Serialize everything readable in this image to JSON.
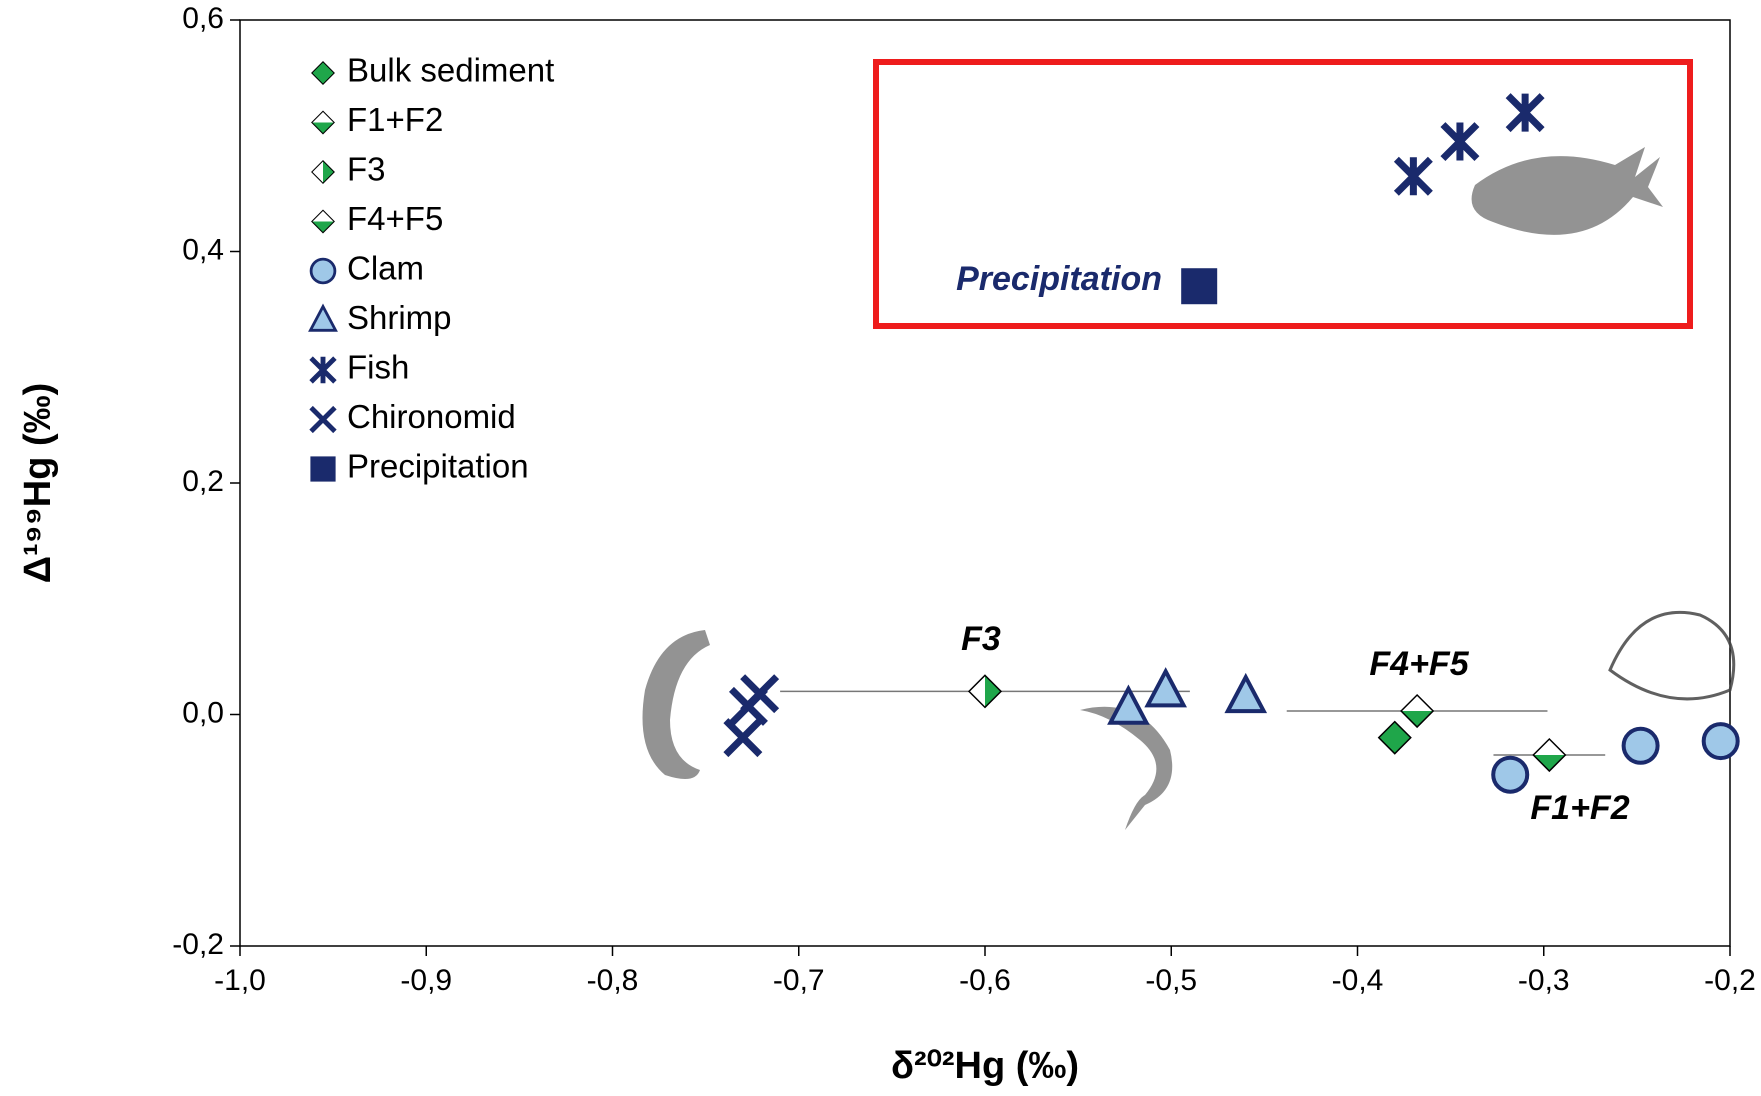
{
  "chart_data": {
    "type": "scatter",
    "x_label": "δ²⁰²Hg (‰)",
    "y_label": "Δ¹⁹⁹Hg (‰)",
    "xlim": [
      -1.0,
      -0.2
    ],
    "ylim": [
      -0.2,
      0.6
    ],
    "xticks": [
      {
        "value": -1.0,
        "label": "-1,0"
      },
      {
        "value": -0.9,
        "label": "-0,9"
      },
      {
        "value": -0.8,
        "label": "-0,8"
      },
      {
        "value": -0.7,
        "label": "-0,7"
      },
      {
        "value": -0.6,
        "label": "-0,6"
      },
      {
        "value": -0.5,
        "label": "-0,5"
      },
      {
        "value": -0.4,
        "label": "-0,4"
      },
      {
        "value": -0.3,
        "label": "-0,3"
      },
      {
        "value": -0.2,
        "label": "-0,2"
      }
    ],
    "yticks": [
      {
        "value": -0.2,
        "label": "-0,2"
      },
      {
        "value": 0.0,
        "label": "0,0"
      },
      {
        "value": 0.2,
        "label": "0,2"
      },
      {
        "value": 0.4,
        "label": "0,4"
      },
      {
        "value": 0.6,
        "label": "0,6"
      }
    ],
    "legend": "upper left",
    "series": [
      {
        "name": "Bulk sediment",
        "marker": "diamond",
        "half": "full",
        "color": "#1fa64a",
        "x": [
          -0.38
        ],
        "values": [
          -0.02
        ]
      },
      {
        "name": "F1+F2",
        "marker": "diamond",
        "half": "bottom",
        "color": "#1fa64a",
        "x": [
          -0.297
        ],
        "xerr": [
          0.03
        ],
        "values": [
          -0.035
        ]
      },
      {
        "name": "F3",
        "marker": "diamond",
        "half": "right",
        "color": "#1fa64a",
        "x": [
          -0.6
        ],
        "xerr": [
          0.11
        ],
        "values": [
          0.02
        ]
      },
      {
        "name": "F4+F5",
        "marker": "diamond",
        "half": "bottom",
        "color": "#1fa64a",
        "x": [
          -0.368
        ],
        "xerr": [
          0.07
        ],
        "values": [
          0.003
        ]
      },
      {
        "name": "Clam",
        "marker": "circle",
        "color": "#9fc8e8",
        "x": [
          -0.318,
          -0.248,
          -0.205
        ],
        "values": [
          -0.052,
          -0.027,
          -0.023
        ]
      },
      {
        "name": "Shrimp",
        "marker": "triangle",
        "color": "#9fc8e8",
        "x": [
          -0.523,
          -0.503,
          -0.46
        ],
        "values": [
          0.005,
          0.02,
          0.015
        ]
      },
      {
        "name": "Fish",
        "marker": "star",
        "color": "#1a2a6c",
        "x": [
          -0.37,
          -0.345,
          -0.31
        ],
        "values": [
          0.465,
          0.495,
          0.52
        ]
      },
      {
        "name": "Chironomid",
        "marker": "x",
        "color": "#1a2a6c",
        "x": [
          -0.721,
          -0.727,
          -0.73
        ],
        "values": [
          0.018,
          0.007,
          -0.02
        ]
      },
      {
        "name": "Precipitation",
        "marker": "square",
        "color": "#1a2a6c",
        "x": [
          -0.485
        ],
        "values": [
          0.37
        ]
      }
    ],
    "annotations": [
      "F3",
      "F4+F5",
      "F1+F2",
      "Precipitation"
    ]
  }
}
